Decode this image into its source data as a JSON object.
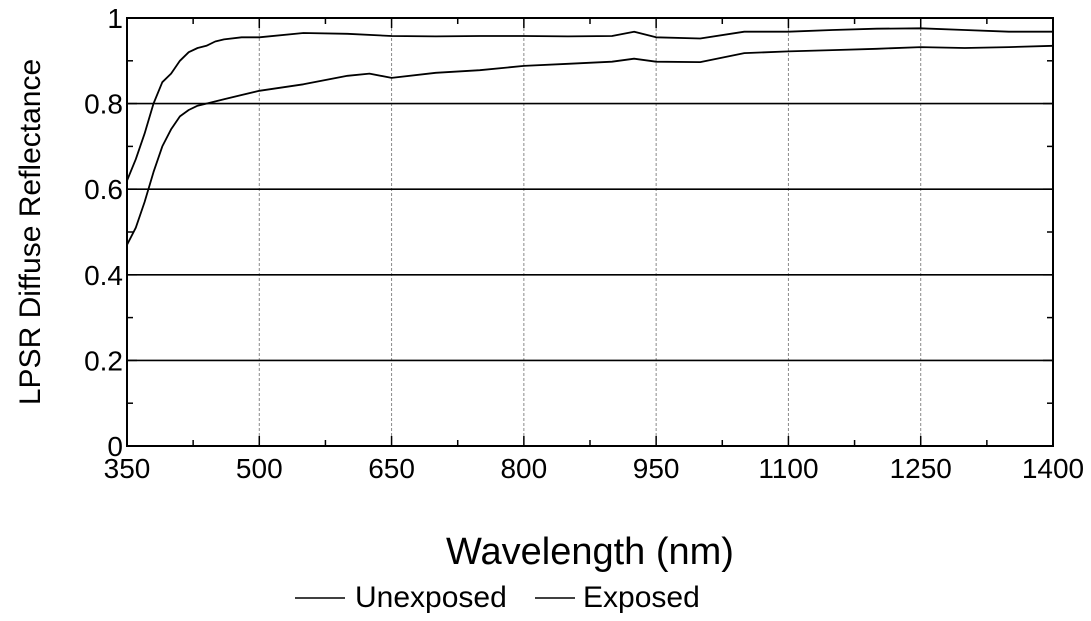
{
  "chart_data": {
    "type": "line",
    "xlabel": "Wavelength (nm)",
    "ylabel": "LPSR Diffuse Reflectance",
    "xlim": [
      350,
      1400
    ],
    "ylim": [
      0,
      1
    ],
    "x_ticks": [
      350,
      500,
      650,
      800,
      950,
      1100,
      1250,
      1400
    ],
    "x_tick_labels": [
      "350",
      "500",
      "650",
      "800",
      "950",
      "1100",
      "1250",
      "1400"
    ],
    "y_ticks": [
      0,
      0.2,
      0.4,
      0.6,
      0.8,
      1
    ],
    "y_tick_labels": [
      "0",
      "0.2",
      "0.4",
      "0.6",
      "0.8",
      "1"
    ],
    "grid": true,
    "legend_position": "bottom-center",
    "series": [
      {
        "name": "Unexposed",
        "color": "#000000",
        "x": [
          350,
          360,
          370,
          380,
          390,
          400,
          410,
          420,
          430,
          440,
          450,
          460,
          480,
          500,
          550,
          600,
          650,
          700,
          750,
          800,
          850,
          900,
          925,
          950,
          1000,
          1050,
          1100,
          1150,
          1200,
          1250,
          1300,
          1350,
          1400
        ],
        "y": [
          0.62,
          0.67,
          0.73,
          0.8,
          0.85,
          0.87,
          0.9,
          0.92,
          0.93,
          0.935,
          0.945,
          0.95,
          0.955,
          0.955,
          0.965,
          0.963,
          0.958,
          0.957,
          0.958,
          0.958,
          0.957,
          0.958,
          0.968,
          0.955,
          0.952,
          0.968,
          0.968,
          0.972,
          0.975,
          0.976,
          0.972,
          0.968,
          0.968
        ]
      },
      {
        "name": "Exposed",
        "color": "#000000",
        "x": [
          350,
          360,
          370,
          380,
          390,
          400,
          410,
          420,
          430,
          440,
          460,
          480,
          500,
          550,
          600,
          625,
          650,
          700,
          750,
          800,
          850,
          900,
          925,
          950,
          1000,
          1050,
          1100,
          1150,
          1200,
          1250,
          1300,
          1350,
          1400
        ],
        "y": [
          0.47,
          0.51,
          0.57,
          0.64,
          0.7,
          0.74,
          0.77,
          0.785,
          0.795,
          0.8,
          0.81,
          0.82,
          0.83,
          0.845,
          0.865,
          0.87,
          0.86,
          0.872,
          0.878,
          0.888,
          0.893,
          0.898,
          0.905,
          0.898,
          0.897,
          0.918,
          0.922,
          0.925,
          0.928,
          0.932,
          0.93,
          0.932,
          0.935
        ]
      }
    ]
  }
}
